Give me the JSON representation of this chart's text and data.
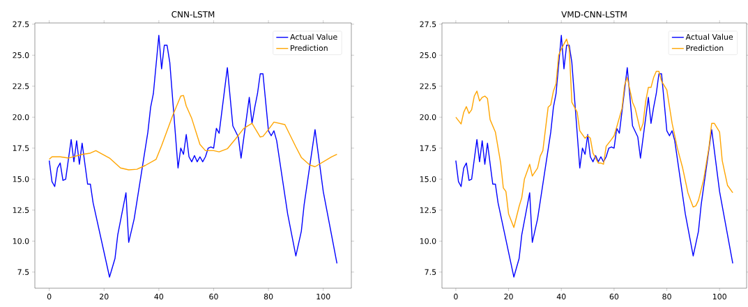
{
  "chart_data": [
    {
      "type": "line",
      "title": "CNN-LSTM",
      "xlim": [
        -5.25,
        110.25
      ],
      "ylim": [
        6.2,
        27.6
      ],
      "xticks": [
        0,
        20,
        40,
        60,
        80,
        100
      ],
      "yticks": [
        {
          "value": 7.5,
          "label": "7.5"
        },
        {
          "value": 10,
          "label": "10.0"
        },
        {
          "value": 12.5,
          "label": "12.5"
        },
        {
          "value": 15,
          "label": "15.0"
        },
        {
          "value": 17.5,
          "label": "17.5"
        },
        {
          "value": 20,
          "label": "20.0"
        },
        {
          "value": 22.5,
          "label": "22.5"
        },
        {
          "value": 25,
          "label": "25.0"
        },
        {
          "value": 27.5,
          "label": "27.5"
        }
      ],
      "legend": "top right",
      "grid": false,
      "series": [
        {
          "name": "Actual Value",
          "color": "#0000ff",
          "x": [
            0,
            1,
            2,
            3,
            4,
            5,
            6,
            8,
            9,
            10,
            11,
            12,
            14,
            15,
            16,
            22,
            24,
            25,
            28,
            29,
            31,
            36,
            37,
            38,
            40,
            41,
            42,
            43,
            44,
            47,
            48,
            49,
            50,
            51,
            52,
            53,
            54,
            55,
            56,
            57,
            58,
            59,
            60,
            61,
            62,
            65,
            67,
            69,
            70,
            73,
            74,
            75,
            76,
            77,
            78,
            80,
            81,
            82,
            83,
            87,
            90,
            92,
            93,
            97,
            100,
            105
          ],
          "values": [
            16.5,
            14.8,
            14.4,
            15.9,
            16.3,
            14.9,
            15.0,
            18.2,
            16.4,
            18.1,
            16.2,
            17.9,
            14.6,
            14.6,
            13.1,
            7.1,
            8.6,
            10.5,
            13.9,
            9.9,
            11.8,
            18.8,
            20.8,
            21.9,
            26.6,
            23.9,
            25.8,
            25.8,
            24.4,
            15.9,
            17.5,
            17.0,
            18.6,
            16.8,
            16.4,
            16.9,
            16.4,
            16.8,
            16.4,
            16.8,
            17.5,
            17.6,
            17.5,
            19.1,
            18.7,
            24.0,
            19.3,
            18.4,
            16.7,
            21.6,
            19.5,
            20.8,
            21.9,
            23.5,
            23.5,
            18.9,
            18.5,
            18.9,
            18.1,
            12.2,
            8.8,
            10.8,
            12.9,
            19.0,
            14.0,
            8.2
          ]
        },
        {
          "name": "Prediction",
          "color": "#ffa500",
          "x": [
            0,
            1,
            4,
            7,
            12,
            15,
            17,
            22,
            26,
            29,
            32,
            35,
            39,
            41,
            45,
            48,
            49,
            50,
            52,
            55,
            57,
            60,
            62,
            65,
            68,
            71,
            74,
            77,
            78,
            80,
            82,
            86,
            90,
            92,
            95,
            97,
            100,
            103,
            105
          ],
          "values": [
            16.6,
            16.8,
            16.8,
            16.7,
            17.0,
            17.1,
            17.3,
            16.7,
            15.9,
            15.75,
            15.8,
            16.1,
            16.6,
            17.7,
            20.1,
            21.7,
            21.75,
            20.9,
            19.9,
            17.8,
            17.3,
            17.3,
            17.2,
            17.45,
            18.25,
            19.1,
            19.5,
            18.4,
            18.45,
            19.0,
            19.6,
            19.4,
            17.6,
            16.75,
            16.15,
            16.0,
            16.4,
            16.8,
            17.0
          ]
        }
      ]
    },
    {
      "type": "line",
      "title": "VMD-CNN-LSTM",
      "xlim": [
        -5.25,
        110.25
      ],
      "ylim": [
        6.2,
        27.6
      ],
      "xticks": [
        0,
        20,
        40,
        60,
        80,
        100
      ],
      "yticks": [
        {
          "value": 7.5,
          "label": "7.5"
        },
        {
          "value": 10,
          "label": "10.0"
        },
        {
          "value": 12.5,
          "label": "12.5"
        },
        {
          "value": 15,
          "label": "15.0"
        },
        {
          "value": 17.5,
          "label": "17.5"
        },
        {
          "value": 20,
          "label": "20.0"
        },
        {
          "value": 22.5,
          "label": "22.5"
        },
        {
          "value": 25,
          "label": "25.0"
        },
        {
          "value": 27.5,
          "label": "27.5"
        }
      ],
      "legend": "top right",
      "grid": false,
      "series": [
        {
          "name": "Actual Value",
          "color": "#0000ff",
          "x": [
            0,
            1,
            2,
            3,
            4,
            5,
            6,
            8,
            9,
            10,
            11,
            12,
            14,
            15,
            16,
            22,
            24,
            25,
            28,
            29,
            31,
            36,
            37,
            38,
            40,
            41,
            42,
            43,
            44,
            47,
            48,
            49,
            50,
            51,
            52,
            53,
            54,
            55,
            56,
            57,
            58,
            59,
            60,
            61,
            62,
            65,
            67,
            69,
            70,
            73,
            74,
            75,
            76,
            77,
            78,
            80,
            81,
            82,
            83,
            87,
            90,
            92,
            93,
            97,
            100,
            105
          ],
          "values": [
            16.5,
            14.8,
            14.4,
            15.9,
            16.3,
            14.9,
            15.0,
            18.2,
            16.4,
            18.1,
            16.2,
            17.9,
            14.6,
            14.6,
            13.1,
            7.1,
            8.6,
            10.5,
            13.9,
            9.9,
            11.8,
            18.8,
            20.8,
            21.9,
            26.6,
            23.9,
            25.8,
            25.8,
            24.4,
            15.9,
            17.5,
            17.0,
            18.6,
            16.8,
            16.4,
            16.9,
            16.4,
            16.8,
            16.4,
            16.8,
            17.5,
            17.6,
            17.5,
            19.1,
            18.7,
            24.0,
            19.3,
            18.4,
            16.7,
            21.6,
            19.5,
            20.8,
            21.9,
            23.5,
            23.5,
            18.9,
            18.5,
            18.9,
            18.1,
            12.2,
            8.8,
            10.8,
            12.9,
            19.0,
            14.0,
            8.2
          ]
        },
        {
          "name": "Prediction",
          "color": "#ffa500",
          "x": [
            0,
            2,
            3,
            4,
            5,
            6,
            7,
            8,
            9,
            10,
            11,
            12,
            13,
            15,
            17,
            18,
            19,
            20,
            22,
            24,
            25,
            26,
            28,
            29,
            31,
            32,
            33,
            35,
            36,
            37,
            38,
            39,
            40,
            42,
            43,
            44,
            46,
            47,
            49,
            50,
            51,
            52,
            54,
            55,
            56,
            57,
            59,
            60,
            61,
            63,
            64,
            65,
            67,
            68,
            70,
            71,
            72,
            73,
            74,
            75,
            76,
            77,
            78,
            80,
            82,
            84,
            86,
            88,
            89,
            90,
            91,
            92,
            94,
            96,
            97,
            98,
            100,
            101,
            103,
            105
          ],
          "values": [
            20.0,
            19.45,
            20.4,
            20.85,
            20.3,
            20.6,
            21.7,
            22.1,
            21.3,
            21.6,
            21.7,
            21.5,
            19.8,
            18.8,
            16.3,
            14.3,
            14.0,
            12.2,
            11.1,
            12.8,
            13.5,
            15.0,
            16.2,
            15.25,
            15.9,
            16.85,
            17.3,
            20.8,
            21.0,
            22.1,
            22.7,
            25.0,
            25.5,
            26.3,
            25.5,
            21.2,
            20.4,
            18.9,
            18.3,
            18.5,
            18.3,
            17.1,
            16.3,
            16.3,
            16.2,
            17.65,
            18.2,
            18.5,
            19.2,
            20.7,
            22.6,
            23.2,
            21.2,
            20.7,
            18.9,
            19.5,
            21.3,
            22.4,
            22.4,
            23.2,
            23.7,
            23.7,
            22.9,
            22.2,
            19.5,
            17.5,
            15.9,
            13.9,
            13.3,
            12.75,
            12.85,
            13.3,
            15.0,
            17.6,
            19.5,
            19.5,
            18.8,
            16.5,
            14.5,
            13.9
          ]
        }
      ]
    }
  ]
}
